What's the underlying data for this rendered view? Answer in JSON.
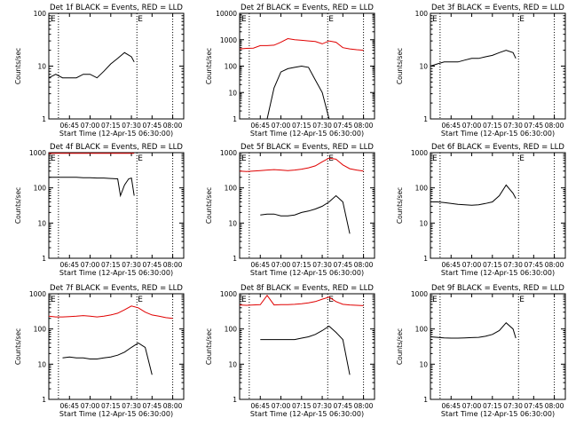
{
  "figure": {
    "xticks": [
      "06:45",
      "07:00",
      "07:15",
      "07:30",
      "07:45",
      "08:00"
    ],
    "xlabel": "Start Time (12-Apr-15 06:30:00)",
    "ylabel": "Counts/sec",
    "marker": "E",
    "colors": {
      "events": "#000000",
      "lld": "#e00000",
      "axes": "#000000"
    }
  },
  "chart_data": [
    {
      "type": "line",
      "title": "Det 1f BLACK = Events, RED = LLD",
      "yscale": "log",
      "ylim": [
        1,
        100
      ],
      "yticks": [
        "1",
        "10",
        "100"
      ],
      "xlim_minutes_after_start": [
        0,
        98
      ],
      "vlines_minutes": [
        7,
        64,
        90
      ],
      "x_minutes_after_start": [
        0,
        5,
        10,
        15,
        20,
        25,
        30,
        35,
        40,
        45,
        50,
        55,
        60,
        62
      ],
      "series": [
        {
          "color": "black",
          "values": [
            6,
            7,
            6,
            6,
            6,
            7,
            7,
            6,
            8,
            11,
            14,
            18,
            15,
            12
          ]
        }
      ]
    },
    {
      "type": "line",
      "title": "Det 2f BLACK = Events, RED = LLD",
      "yscale": "log",
      "ylim": [
        1,
        10000
      ],
      "yticks": [
        "1",
        "10",
        "100",
        "1000",
        "10000"
      ],
      "xlim_minutes_after_start": [
        0,
        98
      ],
      "vlines_minutes": [
        7,
        64,
        90
      ],
      "x_minutes_after_start": [
        0,
        5,
        10,
        15,
        20,
        25,
        30,
        35,
        40,
        45,
        50,
        55,
        60,
        65,
        70,
        75,
        80,
        85,
        90
      ],
      "series": [
        {
          "color": "red",
          "values": [
            450,
            470,
            480,
            600,
            600,
            620,
            800,
            1100,
            1000,
            950,
            900,
            850,
            700,
            900,
            800,
            500,
            450,
            420,
            400
          ]
        },
        {
          "color": "black",
          "values": [
            null,
            null,
            1,
            1,
            1,
            15,
            60,
            80,
            90,
            100,
            90,
            30,
            10,
            1,
            1,
            1,
            null,
            null,
            null
          ]
        }
      ]
    },
    {
      "type": "line",
      "title": "Det 3f BLACK = Events, RED = LLD",
      "yscale": "log",
      "ylim": [
        1,
        100
      ],
      "yticks": [
        "1",
        "10",
        "100"
      ],
      "xlim_minutes_after_start": [
        0,
        98
      ],
      "vlines_minutes": [
        7,
        64,
        90
      ],
      "x_minutes_after_start": [
        0,
        5,
        10,
        15,
        20,
        25,
        30,
        35,
        40,
        45,
        50,
        55,
        60,
        62
      ],
      "series": [
        {
          "color": "black",
          "values": [
            10,
            11,
            12,
            12,
            12,
            13,
            14,
            14,
            15,
            16,
            18,
            20,
            18,
            14
          ]
        }
      ]
    },
    {
      "type": "line",
      "title": "Det 4f BLACK = Events, RED = LLD",
      "yscale": "log",
      "ylim": [
        1,
        1000
      ],
      "yticks": [
        "1",
        "10",
        "100",
        "1000"
      ],
      "xlim_minutes_after_start": [
        0,
        98
      ],
      "vlines_minutes": [
        7,
        64,
        90
      ],
      "x_minutes_after_start": [
        0,
        5,
        10,
        15,
        20,
        25,
        30,
        35,
        40,
        45,
        50,
        52,
        55,
        58,
        60,
        62
      ],
      "series": [
        {
          "color": "red",
          "values": [
            950,
            960,
            960,
            960,
            960,
            960,
            960,
            960,
            960,
            960,
            960,
            960,
            960,
            960,
            960,
            960
          ]
        },
        {
          "color": "black",
          "values": [
            200,
            200,
            200,
            200,
            200,
            195,
            195,
            190,
            190,
            185,
            180,
            60,
            120,
            180,
            190,
            60
          ]
        }
      ]
    },
    {
      "type": "line",
      "title": "Det 5f BLACK = Events, RED = LLD",
      "yscale": "log",
      "ylim": [
        1,
        1000
      ],
      "yticks": [
        "1",
        "10",
        "100",
        "1000"
      ],
      "xlim_minutes_after_start": [
        0,
        98
      ],
      "vlines_minutes": [
        7,
        64,
        90
      ],
      "x_minutes_after_start": [
        0,
        5,
        10,
        15,
        20,
        25,
        30,
        35,
        40,
        45,
        50,
        55,
        60,
        65,
        70,
        75,
        80,
        85,
        90
      ],
      "series": [
        {
          "color": "red",
          "values": [
            300,
            290,
            300,
            310,
            320,
            330,
            320,
            310,
            320,
            340,
            370,
            420,
            550,
            700,
            650,
            450,
            350,
            320,
            300
          ]
        },
        {
          "color": "black",
          "values": [
            null,
            null,
            null,
            17,
            18,
            18,
            16,
            16,
            17,
            20,
            22,
            25,
            30,
            40,
            60,
            40,
            5,
            null,
            null
          ]
        }
      ]
    },
    {
      "type": "line",
      "title": "Det 6f BLACK = Events, RED = LLD",
      "yscale": "log",
      "ylim": [
        1,
        1000
      ],
      "yticks": [
        "1",
        "10",
        "100",
        "1000"
      ],
      "xlim_minutes_after_start": [
        0,
        98
      ],
      "vlines_minutes": [
        7,
        64,
        90
      ],
      "x_minutes_after_start": [
        0,
        5,
        10,
        15,
        20,
        25,
        30,
        35,
        40,
        45,
        50,
        55,
        60,
        62
      ],
      "series": [
        {
          "color": "black",
          "values": [
            40,
            40,
            38,
            36,
            34,
            33,
            32,
            33,
            36,
            40,
            60,
            120,
            70,
            50
          ]
        }
      ]
    },
    {
      "type": "line",
      "title": "Det 7f BLACK = Events, RED = LLD",
      "yscale": "log",
      "ylim": [
        1,
        1000
      ],
      "yticks": [
        "1",
        "10",
        "100",
        "1000"
      ],
      "xlim_minutes_after_start": [
        0,
        98
      ],
      "vlines_minutes": [
        7,
        64,
        90
      ],
      "x_minutes_after_start": [
        0,
        5,
        10,
        15,
        20,
        25,
        30,
        35,
        40,
        45,
        50,
        55,
        60,
        65,
        70,
        75,
        80,
        85,
        90
      ],
      "series": [
        {
          "color": "red",
          "values": [
            230,
            220,
            220,
            225,
            230,
            240,
            230,
            220,
            230,
            250,
            280,
            350,
            450,
            400,
            300,
            250,
            230,
            210,
            200
          ]
        },
        {
          "color": "black",
          "values": [
            null,
            null,
            15,
            16,
            15,
            15,
            14,
            14,
            15,
            16,
            18,
            22,
            30,
            40,
            30,
            5,
            null,
            null,
            null
          ]
        }
      ]
    },
    {
      "type": "line",
      "title": "Det 8f BLACK = Events, RED = LLD",
      "yscale": "log",
      "ylim": [
        1,
        1000
      ],
      "yticks": [
        "1",
        "10",
        "100",
        "1000"
      ],
      "xlim_minutes_after_start": [
        0,
        98
      ],
      "vlines_minutes": [
        7,
        64,
        90
      ],
      "x_minutes_after_start": [
        0,
        5,
        10,
        15,
        20,
        25,
        30,
        35,
        40,
        45,
        50,
        55,
        60,
        65,
        70,
        75,
        80,
        85,
        90
      ],
      "series": [
        {
          "color": "red",
          "values": [
            480,
            470,
            480,
            490,
            900,
            480,
            490,
            490,
            500,
            520,
            550,
            600,
            700,
            800,
            600,
            500,
            480,
            470,
            460
          ]
        },
        {
          "color": "black",
          "values": [
            null,
            null,
            null,
            50,
            50,
            50,
            50,
            50,
            50,
            55,
            60,
            70,
            90,
            120,
            80,
            50,
            5,
            null,
            null
          ]
        }
      ]
    },
    {
      "type": "line",
      "title": "Det 9f BLACK = Events, RED = LLD",
      "yscale": "log",
      "ylim": [
        1,
        1000
      ],
      "yticks": [
        "1",
        "10",
        "100",
        "1000"
      ],
      "xlim_minutes_after_start": [
        0,
        98
      ],
      "vlines_minutes": [
        7,
        64,
        90
      ],
      "x_minutes_after_start": [
        0,
        5,
        10,
        15,
        20,
        25,
        30,
        35,
        40,
        45,
        50,
        55,
        60,
        62
      ],
      "series": [
        {
          "color": "black",
          "values": [
            60,
            58,
            56,
            55,
            55,
            56,
            57,
            58,
            62,
            70,
            90,
            150,
            100,
            55
          ]
        }
      ]
    }
  ]
}
